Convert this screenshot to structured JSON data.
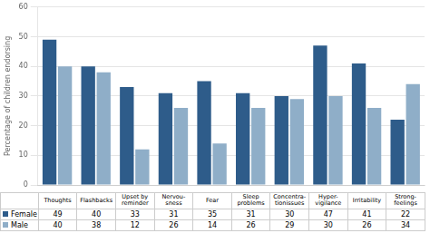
{
  "chart_data": {
    "type": "bar",
    "categories": [
      "Thoughts",
      "Flashbacks",
      "Upset by\nreminder",
      "Nervou-\nsness",
      "Fear",
      "Sleep\nproblems",
      "Concentra-\ntionissues",
      "Hyper-\nvigilance",
      "Irritability",
      "Strong-\nfeelings"
    ],
    "series": [
      {
        "name": "Female",
        "color": "#2e5c8a",
        "values": [
          49,
          40,
          33,
          31,
          35,
          31,
          30,
          47,
          41,
          22
        ]
      },
      {
        "name": "Male",
        "color": "#8faec8",
        "values": [
          40,
          38,
          12,
          26,
          14,
          26,
          29,
          30,
          26,
          34
        ]
      }
    ],
    "ylabel": "Percentage of children endorsing",
    "ylim": [
      0,
      60
    ],
    "yticks": [
      0,
      10,
      20,
      30,
      40,
      50,
      60
    ],
    "grid": true,
    "tick_labels": "y"
  }
}
